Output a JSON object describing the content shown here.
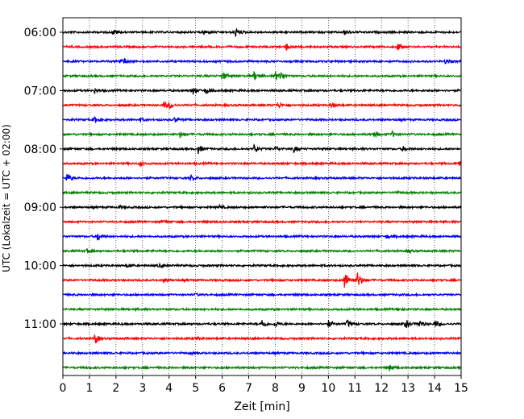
{
  "chart_data": {
    "type": "line",
    "title": "",
    "xlabel": "Zeit  [min]",
    "ylabel": "UTC (Lokalzeit = UTC + 02:00)",
    "xlim": [
      0,
      15
    ],
    "xticks": [
      0,
      1,
      2,
      3,
      4,
      5,
      6,
      7,
      8,
      9,
      10,
      11,
      12,
      13,
      14,
      15
    ],
    "xtick_labels": [
      "0",
      "1",
      "2",
      "3",
      "4",
      "5",
      "6",
      "7",
      "8",
      "9",
      "10",
      "11",
      "12",
      "13",
      "14",
      "15"
    ],
    "ytick_labels": [
      "06:00",
      "07:00",
      "08:00",
      "09:00",
      "10:00",
      "11:00"
    ],
    "grid": "vertical dotted",
    "line_colors": [
      "#000000",
      "#ff0000",
      "#0000ff",
      "#008000"
    ],
    "traces": [
      {
        "start": "06:00",
        "events": [
          {
            "t": 1.9,
            "a": 0.35
          },
          {
            "t": 5.3,
            "a": 0.3
          },
          {
            "t": 6.5,
            "a": 0.6
          },
          {
            "t": 10.6,
            "a": 0.35
          }
        ]
      },
      {
        "start": "06:15",
        "events": [
          {
            "t": 8.4,
            "a": 0.45
          },
          {
            "t": 12.6,
            "a": 0.5
          }
        ]
      },
      {
        "start": "06:30",
        "events": [
          {
            "t": 2.1,
            "a": 0.35
          },
          {
            "t": 2.3,
            "a": 0.35
          },
          {
            "t": 14.4,
            "a": 0.35
          }
        ]
      },
      {
        "start": "06:45",
        "events": [
          {
            "t": 6.0,
            "a": 0.55
          },
          {
            "t": 7.2,
            "a": 0.6
          },
          {
            "t": 8.0,
            "a": 0.6
          },
          {
            "t": 8.2,
            "a": 0.5
          }
        ]
      },
      {
        "start": "07:00",
        "events": [
          {
            "t": 1.2,
            "a": 0.3
          },
          {
            "t": 4.9,
            "a": 0.45
          },
          {
            "t": 5.4,
            "a": 0.4
          }
        ]
      },
      {
        "start": "07:15",
        "events": [
          {
            "t": 3.8,
            "a": 0.45
          },
          {
            "t": 4.0,
            "a": 0.45
          },
          {
            "t": 8.1,
            "a": 0.4
          },
          {
            "t": 10.1,
            "a": 0.4
          }
        ]
      },
      {
        "start": "07:30",
        "events": [
          {
            "t": 1.2,
            "a": 0.45
          },
          {
            "t": 2.9,
            "a": 0.25
          },
          {
            "t": 4.2,
            "a": 0.25
          }
        ]
      },
      {
        "start": "07:45",
        "events": [
          {
            "t": 4.4,
            "a": 0.35
          },
          {
            "t": 11.7,
            "a": 0.4
          },
          {
            "t": 12.4,
            "a": 0.35
          }
        ]
      },
      {
        "start": "08:00",
        "events": [
          {
            "t": 5.1,
            "a": 0.55
          },
          {
            "t": 7.2,
            "a": 0.5
          },
          {
            "t": 8.0,
            "a": 0.35
          },
          {
            "t": 8.7,
            "a": 0.4
          },
          {
            "t": 12.8,
            "a": 0.3
          }
        ]
      },
      {
        "start": "08:15",
        "events": [
          {
            "t": 2.9,
            "a": 0.3
          },
          {
            "t": 14.9,
            "a": 0.45
          }
        ]
      },
      {
        "start": "08:30",
        "events": [
          {
            "t": 0.15,
            "a": 0.7
          },
          {
            "t": 4.8,
            "a": 0.35
          }
        ]
      },
      {
        "start": "08:45",
        "events": [
          {
            "t": 12.5,
            "a": 0.15
          }
        ]
      },
      {
        "start": "09:00",
        "events": [
          {
            "t": 2.1,
            "a": 0.2
          },
          {
            "t": 5.9,
            "a": 0.2
          }
        ]
      },
      {
        "start": "09:15",
        "events": [
          {
            "t": 3.8,
            "a": 0.25
          }
        ]
      },
      {
        "start": "09:30",
        "events": [
          {
            "t": 1.3,
            "a": 0.6
          },
          {
            "t": 12.2,
            "a": 0.25
          }
        ]
      },
      {
        "start": "09:45",
        "events": [
          {
            "t": 0.9,
            "a": 0.2
          },
          {
            "t": 13.0,
            "a": 0.2
          }
        ]
      },
      {
        "start": "10:00",
        "events": [
          {
            "t": 2.4,
            "a": 0.25
          },
          {
            "t": 3.6,
            "a": 0.2
          }
        ]
      },
      {
        "start": "10:15",
        "events": [
          {
            "t": 3.8,
            "a": 0.25
          },
          {
            "t": 10.6,
            "a": 1.3
          },
          {
            "t": 11.1,
            "a": 1.1
          }
        ]
      },
      {
        "start": "10:30",
        "events": [
          {
            "t": 5.0,
            "a": 0.15
          }
        ]
      },
      {
        "start": "10:45",
        "events": [
          {
            "t": 12.6,
            "a": 0.2
          }
        ]
      },
      {
        "start": "11:00",
        "events": [
          {
            "t": 7.5,
            "a": 0.65
          },
          {
            "t": 8.0,
            "a": 0.4
          },
          {
            "t": 10.0,
            "a": 0.45
          },
          {
            "t": 10.7,
            "a": 0.55
          },
          {
            "t": 12.9,
            "a": 0.65
          },
          {
            "t": 13.4,
            "a": 0.6
          },
          {
            "t": 14.0,
            "a": 0.5
          }
        ]
      },
      {
        "start": "11:15",
        "events": [
          {
            "t": 1.2,
            "a": 0.7
          },
          {
            "t": 5.0,
            "a": 0.2
          }
        ]
      },
      {
        "start": "11:30",
        "events": [
          {
            "t": 4.8,
            "a": 0.15
          }
        ]
      },
      {
        "start": "11:45",
        "events": [
          {
            "t": 12.3,
            "a": 0.4
          }
        ]
      }
    ]
  }
}
